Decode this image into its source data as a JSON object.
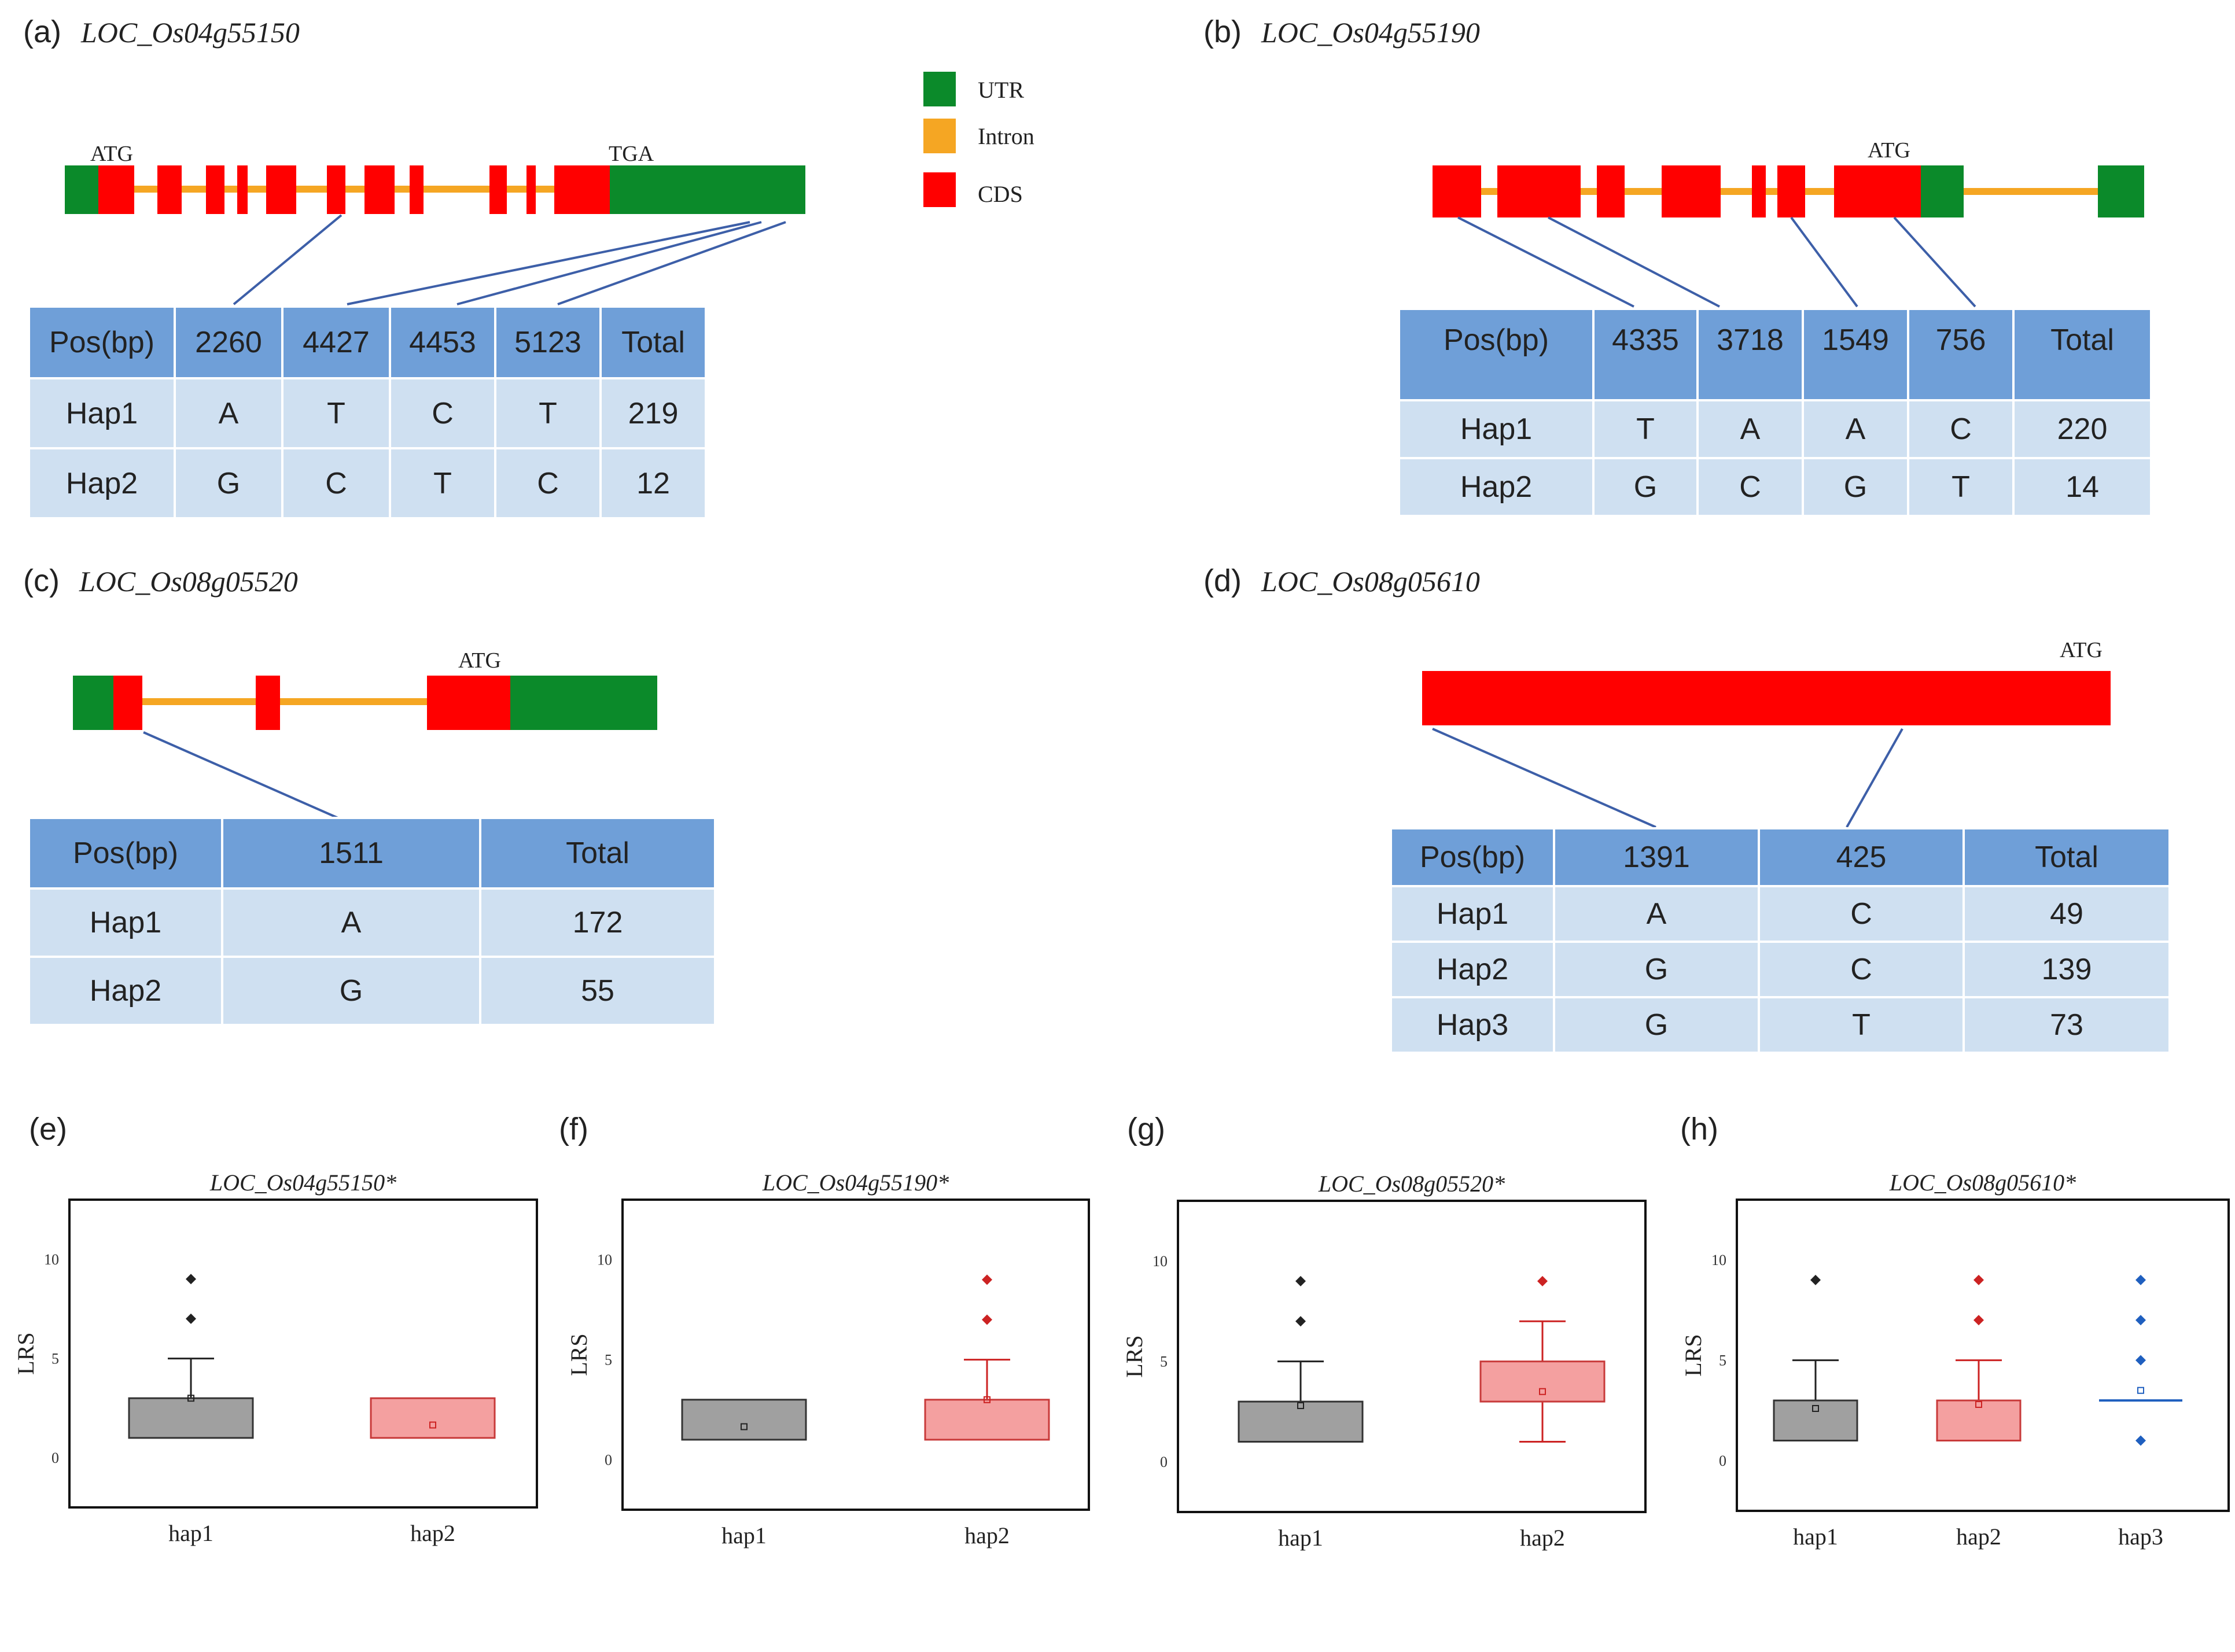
{
  "panels": {
    "a": {
      "letter": "(a)",
      "gene": "LOC_Os04g55150",
      "start": "ATG",
      "stop": "TGA",
      "table": {
        "header": [
          "Pos(bp)",
          "2260",
          "4427",
          "4453",
          "5123",
          "Total"
        ],
        "rows": [
          [
            "Hap1",
            "A",
            "T",
            "C",
            "T",
            "219"
          ],
          [
            "Hap2",
            "G",
            "C",
            "T",
            "C",
            "12"
          ]
        ]
      }
    },
    "b": {
      "letter": "(b)",
      "gene": "LOC_Os04g55190",
      "start": "ATG",
      "table": {
        "header": [
          "Pos(bp)",
          "4335",
          "3718",
          "1549",
          "756",
          "Total"
        ],
        "rows": [
          [
            "Hap1",
            "T",
            "A",
            "A",
            "C",
            "220"
          ],
          [
            "Hap2",
            "G",
            "C",
            "G",
            "T",
            "14"
          ]
        ]
      }
    },
    "c": {
      "letter": "(c)",
      "gene": "LOC_Os08g05520",
      "start": "ATG",
      "table": {
        "header": [
          "Pos(bp)",
          "1511",
          "Total"
        ],
        "rows": [
          [
            "Hap1",
            "A",
            "172"
          ],
          [
            "Hap2",
            "G",
            "55"
          ]
        ]
      }
    },
    "d": {
      "letter": "(d)",
      "gene": "LOC_Os08g05610",
      "start": "ATG",
      "table": {
        "header": [
          "Pos(bp)",
          "1391",
          "425",
          "Total"
        ],
        "rows": [
          [
            "Hap1",
            "A",
            "C",
            "49"
          ],
          [
            "Hap2",
            "G",
            "C",
            "139"
          ],
          [
            "Hap3",
            "G",
            "T",
            "73"
          ]
        ]
      }
    }
  },
  "legend": {
    "utr": "UTR",
    "intron": "Intron",
    "cds": "CDS"
  },
  "colors": {
    "utr": "#0b8a2a",
    "intron": "#f5a623",
    "cds": "#ff0000",
    "header": "#6f9fd8",
    "row": "#cfe0f1",
    "hap1_box": "#a0a0a0",
    "hap2_box": "#f4a0a0",
    "hap3_line": "#1f5fbf"
  },
  "chart_data": [
    {
      "type": "box",
      "panel": "(e)",
      "title": "LOC_Os04g55150*",
      "ylabel": "LRS",
      "yticks": [
        "0",
        "5",
        "10"
      ],
      "ylim": [
        -2.5,
        13
      ],
      "categories": [
        "hap1",
        "hap2"
      ],
      "boxes": [
        {
          "q1": 1,
          "q3": 3,
          "median": 3,
          "mean": 3,
          "whisker_low": 1,
          "whisker_high": 5,
          "outliers": [
            7,
            9
          ],
          "color": "#a0a0a0",
          "mark": "#222222"
        },
        {
          "q1": 1,
          "q3": 3,
          "median": 3,
          "mean": 1.65,
          "whisker_low": 1,
          "whisker_high": 3,
          "outliers": [],
          "color": "#f4a0a0",
          "mark": "#cc2222"
        }
      ]
    },
    {
      "type": "box",
      "panel": "(f)",
      "title": "LOC_Os04g55190*",
      "ylabel": "LRS",
      "yticks": [
        "0",
        "5",
        "10"
      ],
      "ylim": [
        -2.5,
        13
      ],
      "categories": [
        "hap1",
        "hap2"
      ],
      "boxes": [
        {
          "q1": 1,
          "q3": 3,
          "median": 3,
          "mean": 1.65,
          "whisker_low": 1,
          "whisker_high": 3,
          "outliers": [],
          "color": "#a0a0a0",
          "mark": "#222222"
        },
        {
          "q1": 1,
          "q3": 3,
          "median": 3,
          "mean": 3,
          "whisker_low": 1,
          "whisker_high": 5,
          "outliers": [
            7,
            9
          ],
          "color": "#f4a0a0",
          "mark": "#cc2222"
        }
      ]
    },
    {
      "type": "box",
      "panel": "(g)",
      "title": "LOC_Os08g05520*",
      "ylabel": "LRS",
      "yticks": [
        "0",
        "5",
        "10"
      ],
      "ylim": [
        -2.5,
        13
      ],
      "categories": [
        "hap1",
        "hap2"
      ],
      "boxes": [
        {
          "q1": 1,
          "q3": 3,
          "median": 3,
          "mean": 2.8,
          "whisker_low": 1,
          "whisker_high": 5,
          "outliers": [
            7,
            9
          ],
          "color": "#a0a0a0",
          "mark": "#222222"
        },
        {
          "q1": 3,
          "q3": 5,
          "median": 5,
          "mean": 3.5,
          "whisker_low": 1,
          "whisker_high": 7,
          "outliers": [
            9
          ],
          "color": "#f4a0a0",
          "mark": "#cc2222"
        }
      ]
    },
    {
      "type": "box",
      "panel": "(h)",
      "title": "LOC_Os08g05610*",
      "ylabel": "LRS",
      "yticks": [
        "0",
        "5",
        "10"
      ],
      "ylim": [
        -2.5,
        13
      ],
      "categories": [
        "hap1",
        "hap2",
        "hap3"
      ],
      "boxes": [
        {
          "q1": 1,
          "q3": 3,
          "median": 3,
          "mean": 2.6,
          "whisker_low": 1,
          "whisker_high": 5,
          "outliers": [
            9
          ],
          "color": "#a0a0a0",
          "mark": "#222222"
        },
        {
          "q1": 1,
          "q3": 3,
          "median": 3,
          "mean": 2.8,
          "whisker_low": 1,
          "whisker_high": 5,
          "outliers": [
            7,
            9
          ],
          "color": "#f4a0a0",
          "mark": "#cc2222"
        },
        {
          "q1": 3,
          "q3": 3,
          "median": 3,
          "mean": 3.5,
          "whisker_low": 3,
          "whisker_high": 3,
          "outliers": [
            1,
            5,
            7,
            9
          ],
          "color": "none",
          "mark": "#1f5fbf",
          "line_only": true
        }
      ]
    }
  ]
}
